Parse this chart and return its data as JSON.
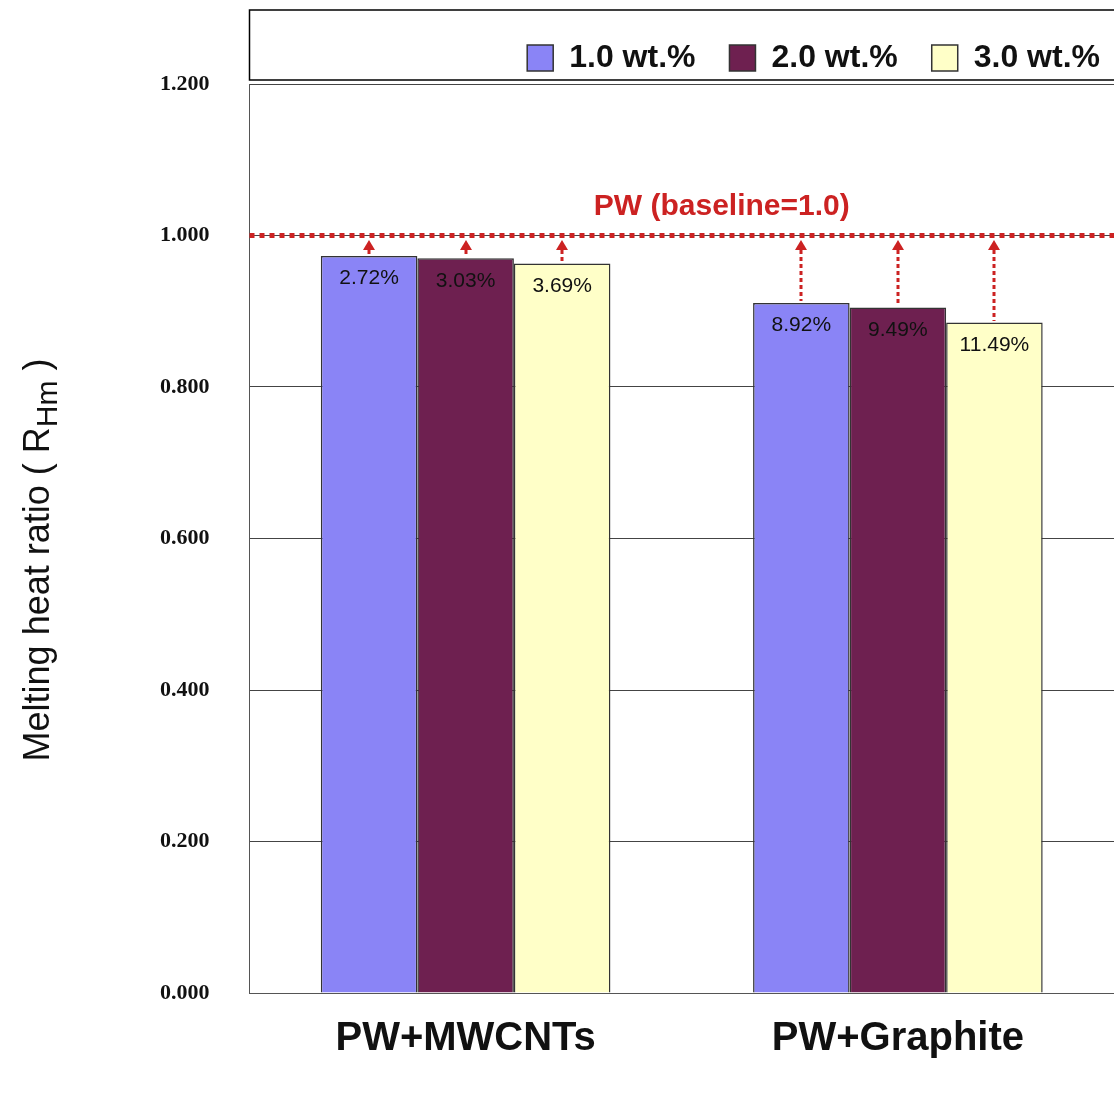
{
  "chart_data": {
    "type": "bar",
    "ylabel": "Melting heat ratio ( R$_{Hm}$ )",
    "categories": [
      "PW+MWCNTs",
      "PW+Graphite"
    ],
    "series": [
      {
        "name": "1.0 wt.%",
        "color": "#8a84f6",
        "values": [
          0.973,
          0.911
        ]
      },
      {
        "name": "2.0 wt.%",
        "color": "#6e2050",
        "values": [
          0.97,
          0.905
        ]
      },
      {
        "name": "3.0 wt.%",
        "color": "#ffffc8",
        "values": [
          0.963,
          0.885
        ]
      }
    ],
    "annotations": [
      "2.72%",
      "3.03%",
      "3.69%",
      "8.92%",
      "9.49%",
      "11.49%"
    ],
    "ylim": [
      0,
      1.2
    ],
    "yticks": [
      {
        "value": 0,
        "label": "0.000"
      },
      {
        "value": 0.2,
        "label": "0.200"
      },
      {
        "value": 0.4,
        "label": "0.400"
      },
      {
        "value": 0.6,
        "label": "0.600"
      },
      {
        "value": 0.8,
        "label": "0.800"
      },
      {
        "value": 1.0,
        "label": "1.000"
      },
      {
        "value": 1.2,
        "label": "1.200"
      }
    ],
    "grid": "y",
    "legend": "top",
    "ref_lines": [
      {
        "axis": "y",
        "value": 1.0,
        "label": "PW (baseline=1.0)",
        "color": "#cc2222",
        "line_style": "dotted"
      }
    ]
  }
}
